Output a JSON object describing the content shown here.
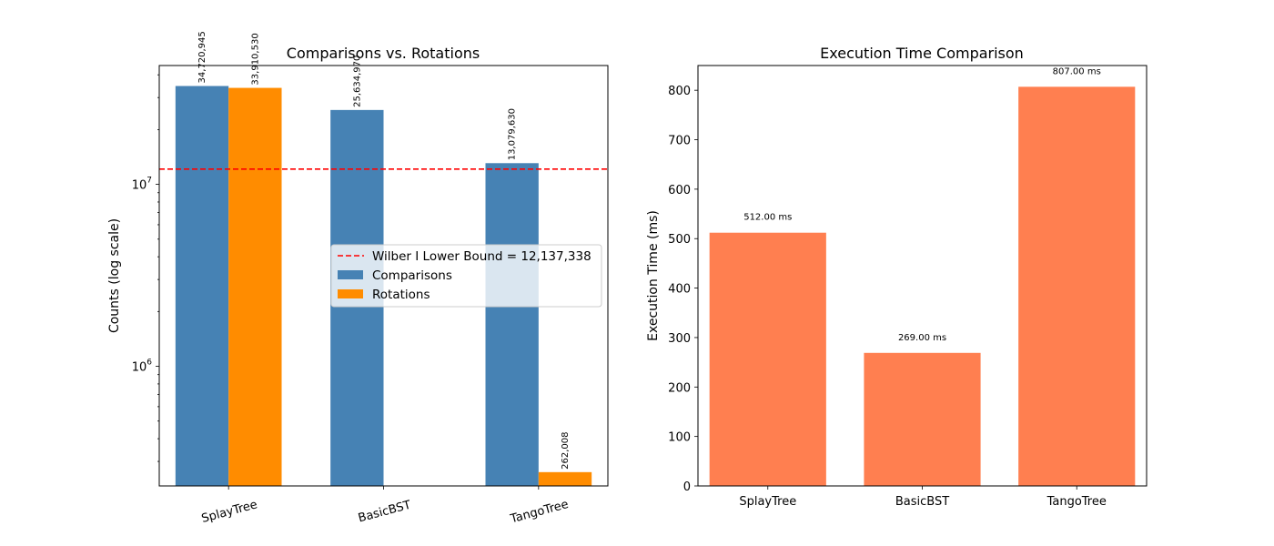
{
  "chart_data": [
    {
      "type": "bar",
      "title": "Comparisons vs. Rotations",
      "xlabel": "",
      "ylabel": "Counts (log scale)",
      "yscale": "log",
      "ylim": [
        220000,
        45000000
      ],
      "categories": [
        "SplayTree",
        "BasicBST",
        "TangoTree"
      ],
      "xtick_rotation": 15,
      "series": [
        {
          "name": "Comparisons",
          "color": "#4682b4",
          "values": [
            34720945,
            25634970,
            13079630
          ],
          "labels": [
            "34,720,945",
            "25,634,970",
            "13,079,630"
          ]
        },
        {
          "name": "Rotations",
          "color": "#ff8c00",
          "values": [
            33910530,
            null,
            262008
          ],
          "labels": [
            "33,910,530",
            "",
            "262,008"
          ]
        }
      ],
      "hline": {
        "value": 12137338,
        "label": "Wilber I Lower Bound = 12,137,338",
        "color": "#ff0000",
        "style": "dashed"
      },
      "yticks": [
        {
          "base": "10",
          "exp": "6",
          "value": 1000000
        },
        {
          "base": "10",
          "exp": "7",
          "value": 10000000
        }
      ],
      "legend_position": "center-right",
      "grid": false
    },
    {
      "type": "bar",
      "title": "Execution Time Comparison",
      "xlabel": "",
      "ylabel": "Execution Time (ms)",
      "ylim": [
        0,
        850
      ],
      "categories": [
        "SplayTree",
        "BasicBST",
        "TangoTree"
      ],
      "series": [
        {
          "name": "",
          "color": "#ff7f50",
          "values": [
            512,
            269,
            807
          ],
          "labels": [
            "512.00 ms",
            "269.00 ms",
            "807.00 ms"
          ]
        }
      ],
      "yticks": [
        0,
        100,
        200,
        300,
        400,
        500,
        600,
        700,
        800
      ],
      "grid": false
    }
  ]
}
